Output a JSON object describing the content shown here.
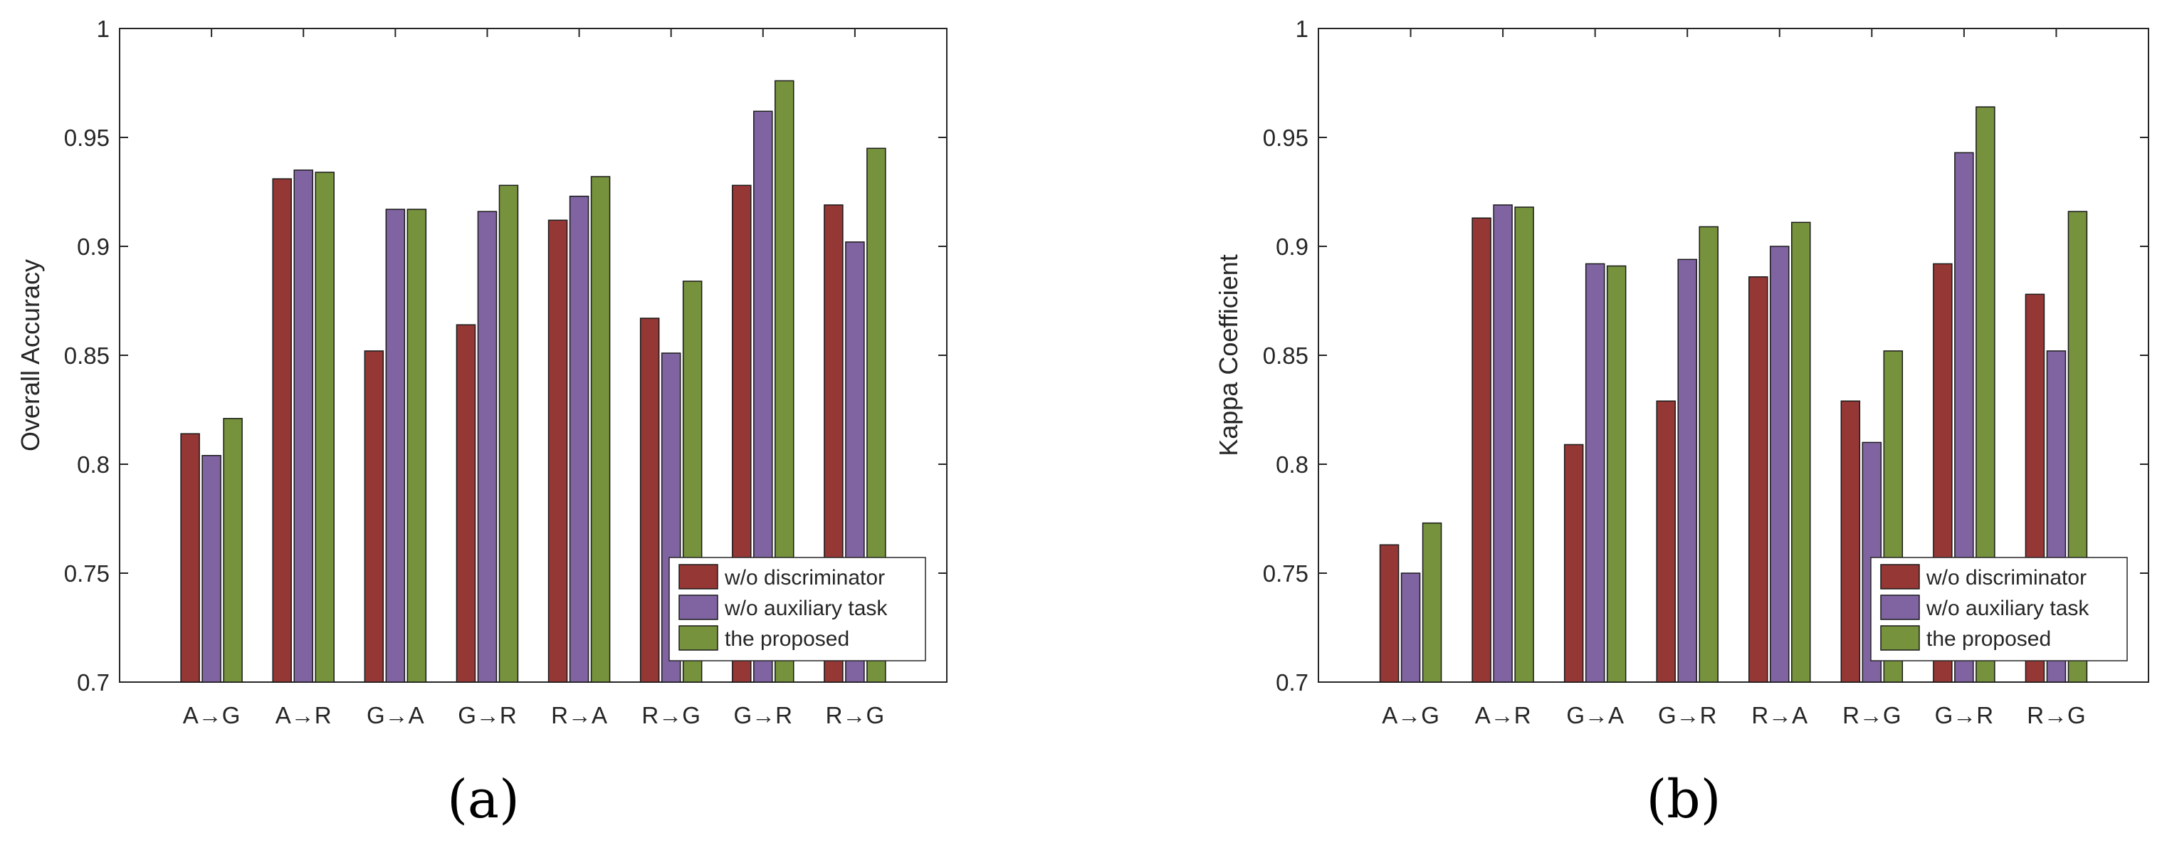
{
  "colors": {
    "w/o discriminator": "#953735",
    "w/o auxiliary task": "#8064a2",
    "the proposed": "#76923c"
  },
  "chart_data": [
    {
      "type": "bar",
      "panel_label": "(a)",
      "title": "",
      "xlabel": "",
      "ylabel": "Overall Accuracy",
      "ylim": [
        0.7,
        1
      ],
      "yticks": [
        "0.7",
        "0.75",
        "0.8",
        "0.85",
        "0.9",
        "0.95",
        "1"
      ],
      "legend": "bottom-right",
      "grid": false,
      "categories": [
        "A→G",
        "A→R",
        "G→A",
        "G→R",
        "R→A",
        "R→G",
        "G→R",
        "R→G"
      ],
      "series": [
        {
          "name": "w/o discriminator",
          "values": [
            0.814,
            0.931,
            0.852,
            0.864,
            0.912,
            0.867,
            0.928,
            0.919
          ]
        },
        {
          "name": "w/o auxiliary task",
          "values": [
            0.804,
            0.935,
            0.917,
            0.916,
            0.923,
            0.851,
            0.962,
            0.902
          ]
        },
        {
          "name": "the proposed",
          "values": [
            0.821,
            0.934,
            0.917,
            0.928,
            0.932,
            0.884,
            0.976,
            0.945
          ]
        }
      ]
    },
    {
      "type": "bar",
      "panel_label": "(b)",
      "title": "",
      "xlabel": "",
      "ylabel": "Kappa Coefficient",
      "ylim": [
        0.7,
        1
      ],
      "yticks": [
        "0.7",
        "0.75",
        "0.8",
        "0.85",
        "0.9",
        "0.95",
        "1"
      ],
      "legend": "bottom-right",
      "grid": false,
      "categories": [
        "A→G",
        "A→R",
        "G→A",
        "G→R",
        "R→A",
        "R→G",
        "G→R",
        "R→G"
      ],
      "series": [
        {
          "name": "w/o discriminator",
          "values": [
            0.763,
            0.913,
            0.809,
            0.829,
            0.886,
            0.829,
            0.892,
            0.878
          ]
        },
        {
          "name": "w/o auxiliary task",
          "values": [
            0.75,
            0.919,
            0.892,
            0.894,
            0.9,
            0.81,
            0.943,
            0.852
          ]
        },
        {
          "name": "the proposed",
          "values": [
            0.773,
            0.918,
            0.891,
            0.909,
            0.911,
            0.852,
            0.964,
            0.916
          ]
        }
      ]
    }
  ]
}
